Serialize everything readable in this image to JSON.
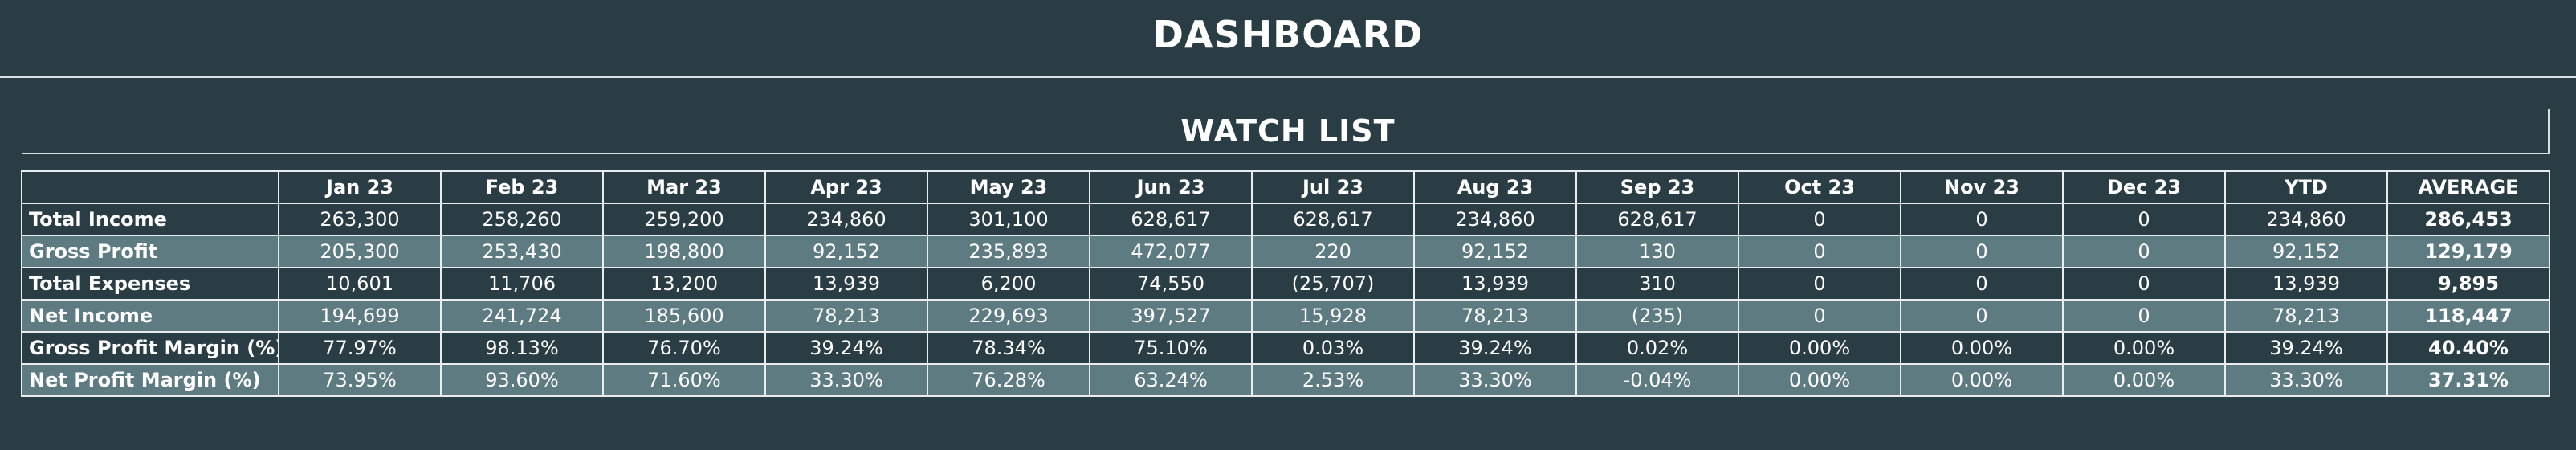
{
  "header": {
    "title": "DASHBOARD"
  },
  "watch_list": {
    "title": "WATCH LIST",
    "columns": [
      "",
      "Jan 23",
      "Feb 23",
      "Mar 23",
      "Apr 23",
      "May 23",
      "Jun 23",
      "Jul 23",
      "Aug 23",
      "Sep 23",
      "Oct 23",
      "Nov 23",
      "Dec 23",
      "YTD",
      "AVERAGE"
    ],
    "rows": [
      {
        "label": "Total Income",
        "values": [
          "263,300",
          "258,260",
          "259,200",
          "234,860",
          "301,100",
          "628,617",
          "628,617",
          "234,860",
          "628,617",
          "0",
          "0",
          "0",
          "234,860",
          "286,453"
        ]
      },
      {
        "label": "Gross Profit",
        "values": [
          "205,300",
          "253,430",
          "198,800",
          "92,152",
          "235,893",
          "472,077",
          "220",
          "92,152",
          "130",
          "0",
          "0",
          "0",
          "92,152",
          "129,179"
        ]
      },
      {
        "label": "Total Expenses",
        "values": [
          "10,601",
          "11,706",
          "13,200",
          "13,939",
          "6,200",
          "74,550",
          "(25,707)",
          "13,939",
          "310",
          "0",
          "0",
          "0",
          "13,939",
          "9,895"
        ]
      },
      {
        "label": "Net Income",
        "values": [
          "194,699",
          "241,724",
          "185,600",
          "78,213",
          "229,693",
          "397,527",
          "15,928",
          "78,213",
          "(235)",
          "0",
          "0",
          "0",
          "78,213",
          "118,447"
        ]
      },
      {
        "label": "Gross Profit Margin (%)",
        "values": [
          "77.97%",
          "98.13%",
          "76.70%",
          "39.24%",
          "78.34%",
          "75.10%",
          "0.03%",
          "39.24%",
          "0.02%",
          "0.00%",
          "0.00%",
          "0.00%",
          "39.24%",
          "40.40%"
        ]
      },
      {
        "label": "Net Profit Margin (%)",
        "values": [
          "73.95%",
          "93.60%",
          "71.60%",
          "33.30%",
          "76.28%",
          "63.24%",
          "2.53%",
          "33.30%",
          "-0.04%",
          "0.00%",
          "0.00%",
          "0.00%",
          "33.30%",
          "37.31%"
        ]
      }
    ]
  },
  "colors": {
    "background": "#2b3d44",
    "row_alt": "#5e7b82",
    "text": "#ffffff",
    "grid_lines": "#e8eef0"
  }
}
